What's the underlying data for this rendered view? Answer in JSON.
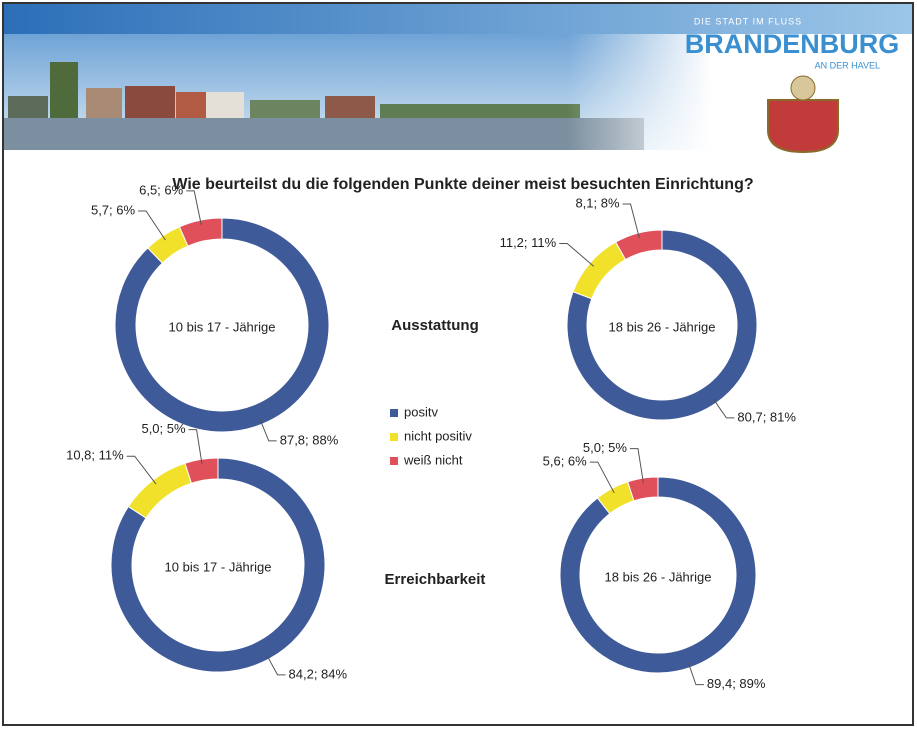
{
  "header": {
    "tagline": "DIE STADT IM FLUSS",
    "logo": "BRANDENBURG",
    "subtitle": "AN DER HAVEL"
  },
  "title": "Wie beurteilst du die folgenden Punkte deiner meist besuchten Einrichtung?",
  "rows": [
    "Ausstattung",
    "Erreichbarkeit"
  ],
  "chart_data": [
    {
      "type": "donut",
      "title": "10 bis 17 - Jährige",
      "categories": [
        "positv",
        "nicht positiv",
        "weiß nicht"
      ],
      "colors": [
        "#3f5a98",
        "#f2e12a",
        "#e0505a"
      ],
      "values": [
        87.8,
        5.7,
        6.5
      ],
      "value_labels": [
        "87,8; 88%",
        "5,7; 6%",
        "6,5; 6%"
      ]
    },
    {
      "type": "donut",
      "title": "18 bis 26 - Jährige",
      "categories": [
        "positv",
        "nicht positiv",
        "weiß nicht"
      ],
      "colors": [
        "#3f5a98",
        "#f2e12a",
        "#e0505a"
      ],
      "values": [
        80.7,
        11.2,
        8.1
      ],
      "value_labels": [
        "80,7; 81%",
        "11,2; 11%",
        "8,1; 8%"
      ]
    },
    {
      "type": "donut",
      "title": "10 bis 17 - Jährige",
      "categories": [
        "positv",
        "nicht positiv",
        "weiß nicht"
      ],
      "colors": [
        "#3f5a98",
        "#f2e12a",
        "#e0505a"
      ],
      "values": [
        84.2,
        10.8,
        5.0
      ],
      "value_labels": [
        "84,2; 84%",
        "10,8; 11%",
        "5,0; 5%"
      ]
    },
    {
      "type": "donut",
      "title": "18 bis 26 - Jährige",
      "categories": [
        "positv",
        "nicht positiv",
        "weiß nicht"
      ],
      "colors": [
        "#3f5a98",
        "#f2e12a",
        "#e0505a"
      ],
      "values": [
        89.4,
        5.6,
        5.0
      ],
      "value_labels": [
        "89,4; 89%",
        "5,6; 6%",
        "5,0; 5%"
      ]
    }
  ]
}
